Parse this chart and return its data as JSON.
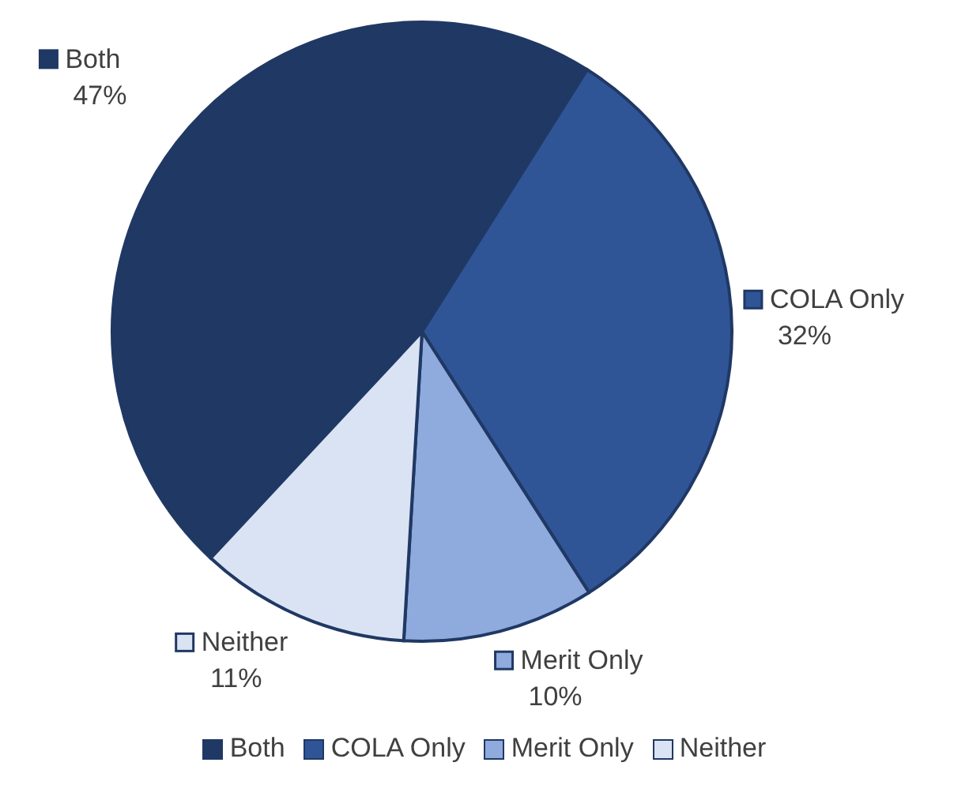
{
  "chart_data": {
    "type": "pie",
    "categories": [
      "Both",
      "COLA Only",
      "Merit Only",
      "Neither"
    ],
    "values": [
      47,
      32,
      10,
      11
    ],
    "colors": [
      "#203864",
      "#2f5597",
      "#8faadc",
      "#dae3f3"
    ],
    "value_labels": [
      "47%",
      "32%",
      "10%",
      "11%"
    ],
    "legend": "bottom"
  }
}
